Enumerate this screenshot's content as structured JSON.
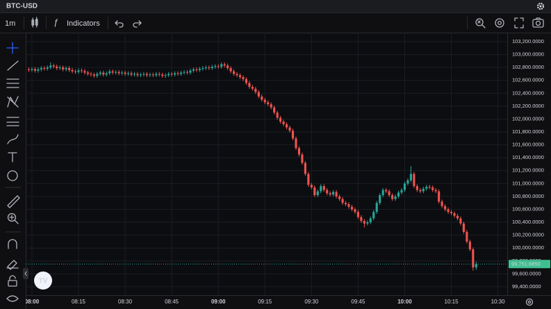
{
  "header": {
    "symbol": "BTC-USD"
  },
  "toolbar": {
    "interval": "1m",
    "indicators": "Indicators"
  },
  "chart_data": {
    "type": "candlestick",
    "x": [
      479,
      480,
      481,
      482,
      483,
      484,
      485,
      486,
      487,
      488,
      489,
      490,
      491,
      492,
      493,
      494,
      495,
      496,
      497,
      498,
      499,
      500,
      501,
      502,
      503,
      504,
      505,
      506,
      507,
      508,
      509,
      510,
      511,
      512,
      513,
      514,
      515,
      516,
      517,
      518,
      519,
      520,
      521,
      522,
      523,
      524,
      525,
      526,
      527,
      528,
      529,
      530,
      531,
      532,
      533,
      534,
      535,
      536,
      537,
      538,
      539,
      540,
      541,
      542,
      543,
      544,
      545,
      546,
      547,
      548,
      549,
      550,
      551,
      552,
      553,
      554,
      555,
      556,
      557,
      558,
      559,
      560,
      561,
      562,
      563,
      564,
      565,
      566,
      567,
      568,
      569,
      570,
      571,
      572,
      573,
      574,
      575,
      576,
      577,
      578,
      579,
      580,
      581,
      582,
      583,
      584,
      585,
      586,
      587,
      588,
      589,
      590,
      591,
      592,
      593,
      594,
      595,
      596,
      597,
      598,
      599,
      600,
      601,
      602,
      603,
      604,
      605,
      606,
      607,
      608,
      609,
      610,
      611,
      612,
      613,
      614,
      615,
      616,
      617,
      618,
      619,
      620,
      621,
      622,
      623
    ],
    "open": [
      102770,
      102760,
      102775,
      102750,
      102770,
      102790,
      102780,
      102800,
      102830,
      102815,
      102790,
      102800,
      102770,
      102790,
      102760,
      102740,
      102730,
      102755,
      102745,
      102720,
      102700,
      102690,
      102670,
      102700,
      102720,
      102690,
      102710,
      102740,
      102720,
      102730,
      102710,
      102720,
      102700,
      102710,
      102690,
      102700,
      102680,
      102690,
      102700,
      102680,
      102690,
      102680,
      102700,
      102690,
      102670,
      102680,
      102700,
      102690,
      102710,
      102700,
      102720,
      102730,
      102720,
      102750,
      102770,
      102760,
      102780,
      102790,
      102800,
      102790,
      102810,
      102820,
      102810,
      102850,
      102830,
      102790,
      102740,
      102700,
      102680,
      102650,
      102620,
      102560,
      102500,
      102470,
      102420,
      102350,
      102300,
      102260,
      102230,
      102180,
      102100,
      102020,
      101960,
      101920,
      101870,
      101820,
      101700,
      101550,
      101450,
      101320,
      101150,
      100980,
      100940,
      100820,
      100880,
      100960,
      100900,
      100850,
      100830,
      100870,
      100800,
      100760,
      100700,
      100680,
      100640,
      100600,
      100560,
      100480,
      100420,
      100380,
      100400,
      100460,
      100560,
      100700,
      100820,
      100900,
      100880,
      100820,
      100760,
      100800,
      100860,
      100900,
      101000,
      101050,
      101150,
      100960,
      100900,
      100880,
      100920,
      100950,
      100940,
      100900,
      100880,
      100720,
      100650,
      100600,
      100560,
      100540,
      100500,
      100460,
      100380,
      100250,
      100100,
      99980,
      99700
    ],
    "high": [
      102800,
      102805,
      102805,
      102800,
      102820,
      102820,
      102830,
      102880,
      102860,
      102845,
      102830,
      102830,
      102820,
      102820,
      102790,
      102770,
      102785,
      102785,
      102775,
      102750,
      102730,
      102720,
      102730,
      102750,
      102750,
      102740,
      102770,
      102770,
      102760,
      102760,
      102750,
      102750,
      102740,
      102740,
      102730,
      102730,
      102720,
      102730,
      102730,
      102720,
      102720,
      102730,
      102730,
      102720,
      102710,
      102730,
      102730,
      102740,
      102740,
      102750,
      102760,
      102760,
      102780,
      102800,
      102800,
      102810,
      102820,
      102830,
      102830,
      102840,
      102850,
      102850,
      102880,
      102880,
      102860,
      102820,
      102770,
      102730,
      102710,
      102680,
      102650,
      102590,
      102530,
      102500,
      102450,
      102380,
      102330,
      102290,
      102260,
      102210,
      102130,
      102050,
      101990,
      101950,
      101900,
      101850,
      101730,
      101580,
      101480,
      101350,
      101180,
      101010,
      100970,
      100910,
      100990,
      100990,
      100930,
      100880,
      100900,
      100900,
      100830,
      100790,
      100730,
      100710,
      100670,
      100630,
      100590,
      100510,
      100450,
      100430,
      100490,
      100590,
      100730,
      100850,
      100930,
      100930,
      100910,
      100850,
      100830,
      100890,
      100930,
      101030,
      101080,
      101270,
      101180,
      100990,
      100930,
      100950,
      100980,
      100980,
      100970,
      100930,
      100910,
      100750,
      100680,
      100630,
      100590,
      100570,
      100530,
      100490,
      100410,
      100280,
      100130,
      100010,
      99790
    ],
    "low": [
      102730,
      102730,
      102720,
      102720,
      102740,
      102750,
      102750,
      102770,
      102785,
      102760,
      102760,
      102740,
      102740,
      102730,
      102710,
      102700,
      102700,
      102715,
      102690,
      102670,
      102660,
      102640,
      102640,
      102670,
      102660,
      102660,
      102680,
      102690,
      102690,
      102680,
      102680,
      102670,
      102670,
      102660,
      102660,
      102650,
      102650,
      102660,
      102650,
      102650,
      102650,
      102650,
      102660,
      102640,
      102640,
      102650,
      102660,
      102660,
      102670,
      102670,
      102690,
      102690,
      102690,
      102720,
      102730,
      102730,
      102750,
      102760,
      102760,
      102760,
      102780,
      102780,
      102780,
      102800,
      102760,
      102710,
      102670,
      102650,
      102620,
      102590,
      102530,
      102470,
      102440,
      102390,
      102320,
      102270,
      102230,
      102200,
      102150,
      102070,
      101990,
      101930,
      101890,
      101840,
      101790,
      101670,
      101520,
      101420,
      101290,
      101120,
      100950,
      100910,
      100790,
      100790,
      100850,
      100870,
      100820,
      100800,
      100800,
      100770,
      100730,
      100670,
      100650,
      100610,
      100570,
      100530,
      100450,
      100390,
      100320,
      100350,
      100370,
      100430,
      100530,
      100670,
      100790,
      100850,
      100790,
      100730,
      100730,
      100770,
      100830,
      100870,
      100970,
      101020,
      100930,
      100870,
      100850,
      100850,
      100890,
      100910,
      100870,
      100850,
      100690,
      100620,
      100570,
      100530,
      100510,
      100470,
      100430,
      100350,
      100220,
      100070,
      99950,
      99650,
      99660
    ],
    "close": [
      102760,
      102775,
      102750,
      102770,
      102790,
      102780,
      102800,
      102830,
      102815,
      102790,
      102800,
      102770,
      102790,
      102760,
      102740,
      102730,
      102755,
      102745,
      102720,
      102700,
      102690,
      102670,
      102700,
      102720,
      102690,
      102710,
      102740,
      102720,
      102730,
      102710,
      102720,
      102700,
      102710,
      102690,
      102700,
      102680,
      102690,
      102700,
      102680,
      102690,
      102680,
      102700,
      102690,
      102670,
      102680,
      102700,
      102690,
      102710,
      102700,
      102720,
      102730,
      102720,
      102750,
      102770,
      102760,
      102780,
      102790,
      102800,
      102790,
      102810,
      102820,
      102810,
      102850,
      102830,
      102790,
      102740,
      102700,
      102680,
      102650,
      102620,
      102560,
      102500,
      102470,
      102420,
      102350,
      102300,
      102260,
      102230,
      102180,
      102100,
      102020,
      101960,
      101920,
      101870,
      101820,
      101700,
      101550,
      101450,
      101320,
      101150,
      100980,
      100940,
      100820,
      100880,
      100960,
      100900,
      100850,
      100830,
      100870,
      100800,
      100760,
      100700,
      100680,
      100640,
      100600,
      100560,
      100480,
      100420,
      100380,
      100400,
      100460,
      100560,
      100700,
      100820,
      100900,
      100880,
      100820,
      100760,
      100800,
      100860,
      100900,
      101000,
      101050,
      101150,
      100960,
      100900,
      100880,
      100920,
      100950,
      100940,
      100900,
      100880,
      100720,
      100650,
      100600,
      100560,
      100540,
      100500,
      100460,
      100380,
      100250,
      100100,
      99980,
      99700,
      99751.685
    ],
    "up_color": "#26a69a",
    "down_color": "#ef5350",
    "xlim": [
      478,
      633
    ],
    "xticks": [
      {
        "value": 480,
        "label": "08:00"
      },
      {
        "value": 495,
        "label": "08:15"
      },
      {
        "value": 510,
        "label": "08:30"
      },
      {
        "value": 525,
        "label": "08:45"
      },
      {
        "value": 540,
        "label": "09:00"
      },
      {
        "value": 555,
        "label": "09:15"
      },
      {
        "value": 570,
        "label": "09:30"
      },
      {
        "value": 585,
        "label": "09:45"
      },
      {
        "value": 600,
        "label": "10:00"
      },
      {
        "value": 615,
        "label": "10:15"
      },
      {
        "value": 630,
        "label": "10:30"
      }
    ],
    "ylim": [
      99270,
      103340
    ],
    "yticks": [
      {
        "value": 99400,
        "label": "99,400.0000"
      },
      {
        "value": 99600,
        "label": "99,600.0000"
      },
      {
        "value": 99800,
        "label": "99,800.0000"
      },
      {
        "value": 100000,
        "label": "100,000.0000"
      },
      {
        "value": 100200,
        "label": "100,200.0000"
      },
      {
        "value": 100400,
        "label": "100,400.0000"
      },
      {
        "value": 100600,
        "label": "100,600.0000"
      },
      {
        "value": 100800,
        "label": "100,800.0000"
      },
      {
        "value": 101000,
        "label": "101,000.0000"
      },
      {
        "value": 101200,
        "label": "101,200.0000"
      },
      {
        "value": 101400,
        "label": "101,400.0000"
      },
      {
        "value": 101600,
        "label": "101,600.0000"
      },
      {
        "value": 101800,
        "label": "101,800.0000"
      },
      {
        "value": 102000,
        "label": "102,000.0000"
      },
      {
        "value": 102200,
        "label": "102,200.0000"
      },
      {
        "value": 102400,
        "label": "102,400.0000"
      },
      {
        "value": 102600,
        "label": "102,600.0000"
      },
      {
        "value": 102800,
        "label": "102,800.0000"
      },
      {
        "value": 103000,
        "label": "103,000.0000"
      },
      {
        "value": 103200,
        "label": "103,200.0000"
      }
    ],
    "grid": true,
    "last_price": {
      "value": 99751.685,
      "label": "99,751.6850"
    }
  }
}
